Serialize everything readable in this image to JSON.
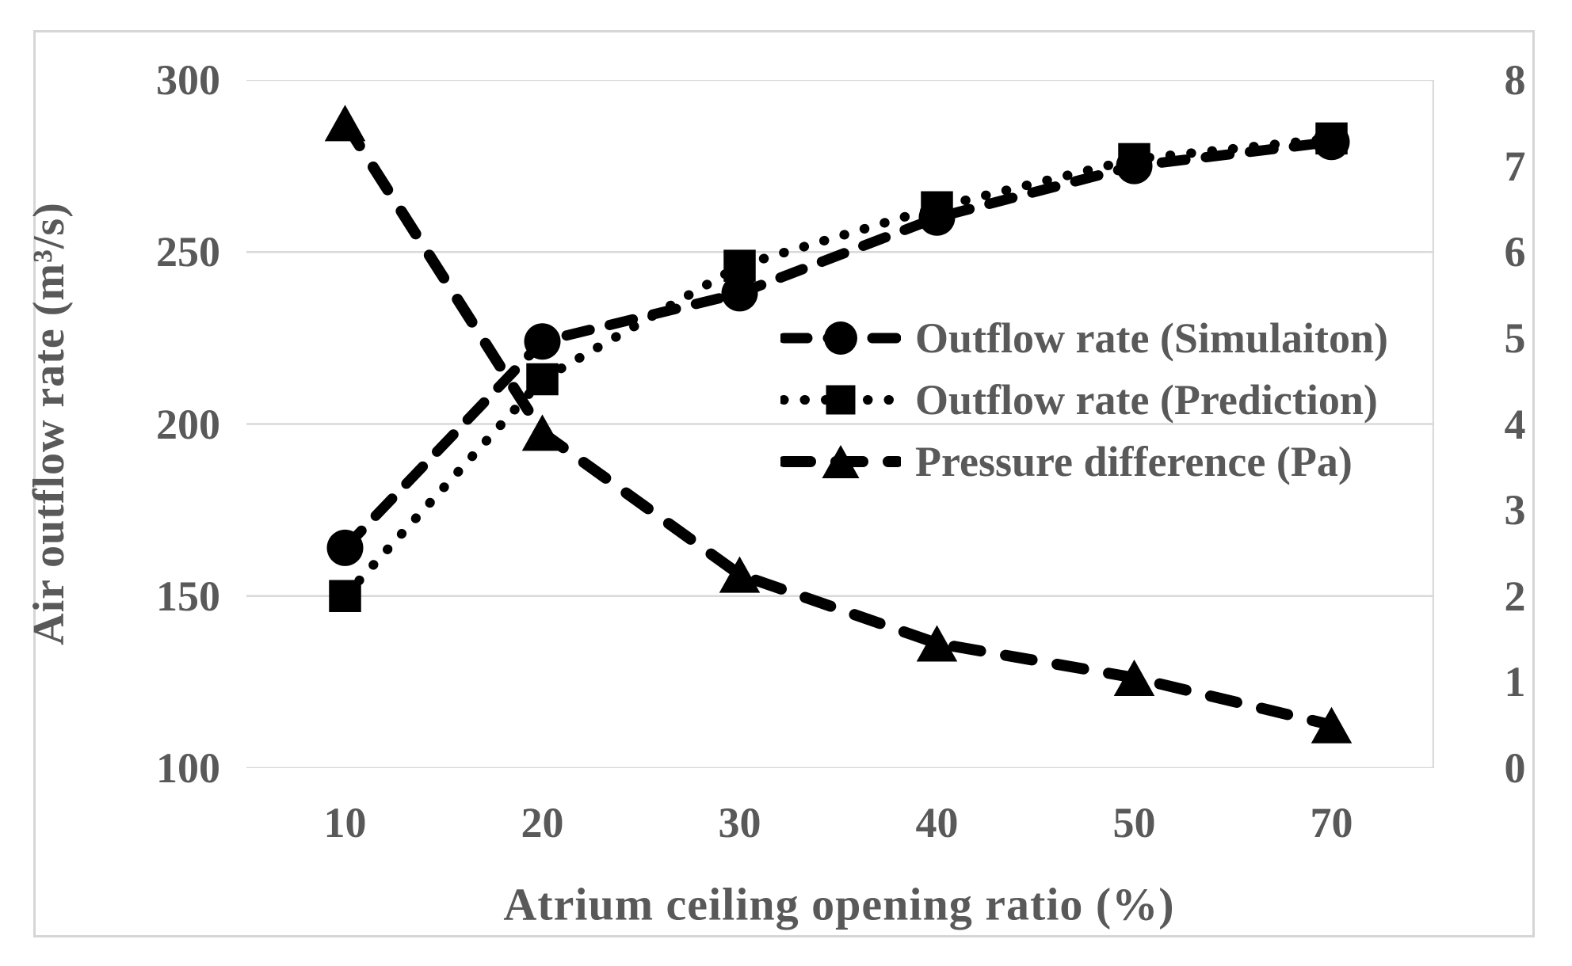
{
  "chart_data": {
    "type": "line",
    "categories": [
      10,
      20,
      30,
      40,
      50,
      70
    ],
    "x_tick_labels": [
      "10",
      "20",
      "30",
      "40",
      "50",
      "70"
    ],
    "xlabel": "Atrium ceiling opening ratio (%)",
    "left_axis": {
      "label": "Air outflow rate (m³/s)",
      "min": 100,
      "max": 300,
      "ticks": [
        "300",
        "250",
        "200",
        "150",
        "100"
      ],
      "tick_values": [
        300,
        250,
        200,
        150,
        100
      ]
    },
    "right_axis": {
      "label": "",
      "min": 0,
      "max": 8,
      "ticks": [
        "8",
        "7",
        "6",
        "5",
        "4",
        "3",
        "2",
        "1",
        "0"
      ],
      "tick_values": [
        8,
        7,
        6,
        5,
        4,
        3,
        2,
        1,
        0
      ]
    },
    "series": [
      {
        "name": "Outflow rate (Simulaiton)",
        "axis": "left",
        "marker": "circle",
        "line_style": "dash",
        "values": [
          164,
          224,
          238,
          260,
          275,
          282
        ]
      },
      {
        "name": "Outflow rate (Prediction)",
        "axis": "left",
        "marker": "square",
        "line_style": "dot",
        "values": [
          150,
          213,
          246,
          263,
          277,
          283
        ]
      },
      {
        "name": "Pressure difference (Pa)",
        "axis": "right",
        "marker": "triangle",
        "line_style": "longdash",
        "values": [
          7.5,
          3.9,
          2.25,
          1.45,
          1.05,
          0.5
        ]
      }
    ],
    "legend_position": "middle-right",
    "grid": true,
    "colors": {
      "series": "#000000",
      "text": "#595959",
      "gridline": "#d9d9d9",
      "border": "#d6d6d6",
      "background": "#ffffff"
    }
  }
}
